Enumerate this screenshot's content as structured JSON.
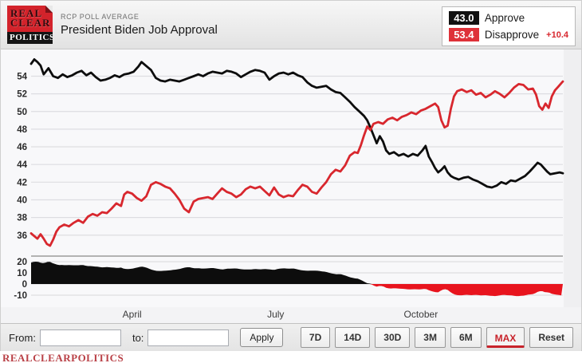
{
  "header": {
    "logo": {
      "line1": "REAL",
      "line2": "CLEAR",
      "line3": "POLITICS"
    },
    "kicker": "RCP POLL AVERAGE",
    "title": "President Biden Job Approval"
  },
  "legend": {
    "rows": [
      {
        "value": "43.0",
        "label": "Approve",
        "chip_color": "#111111",
        "delta": ""
      },
      {
        "value": "53.4",
        "label": "Disapprove",
        "chip_color": "#de3139",
        "delta": "+10.4"
      }
    ]
  },
  "chart_data": {
    "type": "line",
    "title": "President Biden Job Approval",
    "x_axis": {
      "unit": "day-of-year-2021",
      "range": [
        27,
        364
      ],
      "month_ticks": [
        {
          "label": "April",
          "day": 91
        },
        {
          "label": "July",
          "day": 182
        },
        {
          "label": "October",
          "day": 274
        }
      ]
    },
    "main_panel": {
      "ylim": [
        33.9,
        56.3
      ],
      "yticks": [
        54,
        52,
        50,
        48,
        46,
        44,
        42,
        40,
        38,
        36
      ],
      "grid": true,
      "colors": {
        "plot_bg": "#f8f8fa",
        "grid": "#dddde1",
        "tick_text": "#2a2a2a"
      }
    },
    "spread_panel": {
      "ylim": [
        -20,
        24.3
      ],
      "yticks": [
        20,
        10,
        0,
        -10
      ],
      "note": "spread = Approve minus Disapprove; filled black when positive, red when negative",
      "positive_color": "#0d0d0d",
      "negative_color": "#e8141e"
    },
    "series": [
      {
        "name": "Approve",
        "color": "#0d0d0d",
        "final_value": 43.0,
        "points": [
          [
            27,
            55.4
          ],
          [
            29,
            55.9
          ],
          [
            31,
            55.6
          ],
          [
            33,
            55.2
          ],
          [
            35,
            54.2
          ],
          [
            38,
            54.9
          ],
          [
            41,
            54.0
          ],
          [
            44,
            53.8
          ],
          [
            47,
            54.2
          ],
          [
            50,
            53.9
          ],
          [
            53,
            54.1
          ],
          [
            56,
            54.4
          ],
          [
            59,
            54.6
          ],
          [
            62,
            54.1
          ],
          [
            65,
            54.4
          ],
          [
            68,
            53.9
          ],
          [
            71,
            53.5
          ],
          [
            74,
            53.6
          ],
          [
            77,
            53.8
          ],
          [
            80,
            54.1
          ],
          [
            83,
            53.9
          ],
          [
            86,
            54.2
          ],
          [
            89,
            54.3
          ],
          [
            92,
            54.5
          ],
          [
            95,
            55.1
          ],
          [
            97,
            55.6
          ],
          [
            99,
            55.3
          ],
          [
            101,
            55.0
          ],
          [
            103,
            54.7
          ],
          [
            106,
            53.8
          ],
          [
            109,
            53.5
          ],
          [
            112,
            53.4
          ],
          [
            115,
            53.6
          ],
          [
            118,
            53.5
          ],
          [
            121,
            53.4
          ],
          [
            124,
            53.6
          ],
          [
            127,
            53.8
          ],
          [
            130,
            54.0
          ],
          [
            133,
            54.2
          ],
          [
            136,
            54.0
          ],
          [
            139,
            54.3
          ],
          [
            142,
            54.5
          ],
          [
            145,
            54.4
          ],
          [
            148,
            54.3
          ],
          [
            151,
            54.6
          ],
          [
            154,
            54.5
          ],
          [
            157,
            54.3
          ],
          [
            160,
            53.9
          ],
          [
            163,
            54.2
          ],
          [
            166,
            54.5
          ],
          [
            169,
            54.7
          ],
          [
            172,
            54.6
          ],
          [
            175,
            54.4
          ],
          [
            178,
            53.6
          ],
          [
            181,
            54.0
          ],
          [
            184,
            54.3
          ],
          [
            187,
            54.4
          ],
          [
            190,
            54.2
          ],
          [
            193,
            54.4
          ],
          [
            196,
            54.1
          ],
          [
            199,
            53.9
          ],
          [
            202,
            53.3
          ],
          [
            205,
            52.9
          ],
          [
            208,
            52.7
          ],
          [
            211,
            52.8
          ],
          [
            214,
            52.9
          ],
          [
            217,
            52.5
          ],
          [
            220,
            52.2
          ],
          [
            223,
            52.1
          ],
          [
            226,
            51.6
          ],
          [
            229,
            51.1
          ],
          [
            232,
            50.5
          ],
          [
            235,
            50.0
          ],
          [
            238,
            49.5
          ],
          [
            240,
            49.0
          ],
          [
            242,
            48.2
          ],
          [
            244,
            47.3
          ],
          [
            246,
            46.4
          ],
          [
            248,
            47.2
          ],
          [
            250,
            46.6
          ],
          [
            252,
            45.6
          ],
          [
            254,
            45.2
          ],
          [
            257,
            45.4
          ],
          [
            260,
            45.0
          ],
          [
            263,
            45.2
          ],
          [
            266,
            44.9
          ],
          [
            269,
            45.2
          ],
          [
            272,
            45.0
          ],
          [
            275,
            45.6
          ],
          [
            277,
            46.1
          ],
          [
            279,
            44.9
          ],
          [
            281,
            44.3
          ],
          [
            283,
            43.6
          ],
          [
            285,
            43.1
          ],
          [
            287,
            43.4
          ],
          [
            289,
            43.8
          ],
          [
            291,
            43.1
          ],
          [
            293,
            42.7
          ],
          [
            295,
            42.5
          ],
          [
            298,
            42.3
          ],
          [
            301,
            42.5
          ],
          [
            304,
            42.6
          ],
          [
            307,
            42.3
          ],
          [
            310,
            42.1
          ],
          [
            313,
            41.8
          ],
          [
            316,
            41.5
          ],
          [
            319,
            41.4
          ],
          [
            322,
            41.6
          ],
          [
            325,
            42.0
          ],
          [
            328,
            41.8
          ],
          [
            331,
            42.2
          ],
          [
            334,
            42.1
          ],
          [
            337,
            42.4
          ],
          [
            340,
            42.7
          ],
          [
            343,
            43.2
          ],
          [
            346,
            43.8
          ],
          [
            348,
            44.2
          ],
          [
            350,
            44.0
          ],
          [
            352,
            43.6
          ],
          [
            354,
            43.2
          ],
          [
            356,
            42.9
          ],
          [
            359,
            43.0
          ],
          [
            362,
            43.1
          ],
          [
            364,
            43.0
          ]
        ]
      },
      {
        "name": "Disapprove",
        "color": "#d8272e",
        "final_value": 53.4,
        "points": [
          [
            27,
            36.2
          ],
          [
            29,
            35.9
          ],
          [
            31,
            35.6
          ],
          [
            33,
            36.1
          ],
          [
            35,
            35.6
          ],
          [
            37,
            35.0
          ],
          [
            39,
            34.8
          ],
          [
            41,
            35.5
          ],
          [
            43,
            36.4
          ],
          [
            45,
            36.9
          ],
          [
            48,
            37.2
          ],
          [
            51,
            37.0
          ],
          [
            54,
            37.4
          ],
          [
            57,
            37.7
          ],
          [
            60,
            37.4
          ],
          [
            63,
            38.1
          ],
          [
            66,
            38.4
          ],
          [
            69,
            38.2
          ],
          [
            72,
            38.6
          ],
          [
            75,
            38.5
          ],
          [
            78,
            39.0
          ],
          [
            81,
            39.6
          ],
          [
            84,
            39.3
          ],
          [
            86,
            40.6
          ],
          [
            88,
            40.9
          ],
          [
            91,
            40.7
          ],
          [
            94,
            40.2
          ],
          [
            97,
            39.9
          ],
          [
            100,
            40.4
          ],
          [
            103,
            41.7
          ],
          [
            106,
            42.0
          ],
          [
            109,
            41.8
          ],
          [
            112,
            41.5
          ],
          [
            115,
            41.3
          ],
          [
            118,
            40.7
          ],
          [
            121,
            40.0
          ],
          [
            124,
            39.0
          ],
          [
            127,
            38.6
          ],
          [
            130,
            39.8
          ],
          [
            133,
            40.1
          ],
          [
            136,
            40.2
          ],
          [
            139,
            40.3
          ],
          [
            142,
            40.1
          ],
          [
            145,
            40.7
          ],
          [
            148,
            41.3
          ],
          [
            151,
            40.9
          ],
          [
            154,
            40.7
          ],
          [
            157,
            40.3
          ],
          [
            160,
            40.6
          ],
          [
            163,
            41.2
          ],
          [
            166,
            41.5
          ],
          [
            169,
            41.3
          ],
          [
            172,
            41.5
          ],
          [
            175,
            41.0
          ],
          [
            178,
            40.5
          ],
          [
            181,
            41.4
          ],
          [
            184,
            40.6
          ],
          [
            187,
            40.3
          ],
          [
            190,
            40.5
          ],
          [
            193,
            40.4
          ],
          [
            196,
            41.1
          ],
          [
            199,
            41.7
          ],
          [
            202,
            41.5
          ],
          [
            205,
            40.9
          ],
          [
            208,
            40.7
          ],
          [
            211,
            41.4
          ],
          [
            214,
            42.0
          ],
          [
            217,
            42.9
          ],
          [
            220,
            43.4
          ],
          [
            223,
            43.2
          ],
          [
            226,
            43.9
          ],
          [
            229,
            45.0
          ],
          [
            232,
            45.4
          ],
          [
            234,
            45.3
          ],
          [
            236,
            46.2
          ],
          [
            238,
            47.3
          ],
          [
            240,
            48.3
          ],
          [
            242,
            47.9
          ],
          [
            244,
            48.6
          ],
          [
            247,
            48.8
          ],
          [
            250,
            48.6
          ],
          [
            253,
            49.1
          ],
          [
            256,
            49.3
          ],
          [
            259,
            49.0
          ],
          [
            262,
            49.4
          ],
          [
            265,
            49.6
          ],
          [
            268,
            49.9
          ],
          [
            271,
            49.7
          ],
          [
            274,
            50.1
          ],
          [
            277,
            50.3
          ],
          [
            280,
            50.6
          ],
          [
            283,
            50.9
          ],
          [
            285,
            50.5
          ],
          [
            287,
            49.0
          ],
          [
            289,
            48.2
          ],
          [
            291,
            48.4
          ],
          [
            293,
            50.3
          ],
          [
            295,
            51.7
          ],
          [
            297,
            52.3
          ],
          [
            300,
            52.5
          ],
          [
            303,
            52.2
          ],
          [
            306,
            52.4
          ],
          [
            309,
            51.9
          ],
          [
            312,
            52.1
          ],
          [
            315,
            51.6
          ],
          [
            318,
            51.9
          ],
          [
            321,
            52.3
          ],
          [
            324,
            52.0
          ],
          [
            327,
            51.6
          ],
          [
            330,
            52.1
          ],
          [
            333,
            52.7
          ],
          [
            336,
            53.1
          ],
          [
            339,
            53.0
          ],
          [
            342,
            52.5
          ],
          [
            345,
            52.6
          ],
          [
            347,
            51.9
          ],
          [
            349,
            50.6
          ],
          [
            351,
            50.2
          ],
          [
            353,
            50.9
          ],
          [
            355,
            50.4
          ],
          [
            357,
            51.7
          ],
          [
            359,
            52.4
          ],
          [
            361,
            52.8
          ],
          [
            363,
            53.2
          ],
          [
            364,
            53.4
          ]
        ]
      }
    ]
  },
  "toolbar": {
    "from_label": "From:",
    "to_label": "to:",
    "apply_label": "Apply",
    "range_buttons": [
      {
        "label": "7D",
        "active": false
      },
      {
        "label": "14D",
        "active": false
      },
      {
        "label": "30D",
        "active": false
      },
      {
        "label": "3M",
        "active": false
      },
      {
        "label": "6M",
        "active": false
      },
      {
        "label": "MAX",
        "active": true
      },
      {
        "label": "Reset",
        "active": false
      }
    ]
  },
  "footer": {
    "brand": "REALCLEARPOLITICS"
  }
}
